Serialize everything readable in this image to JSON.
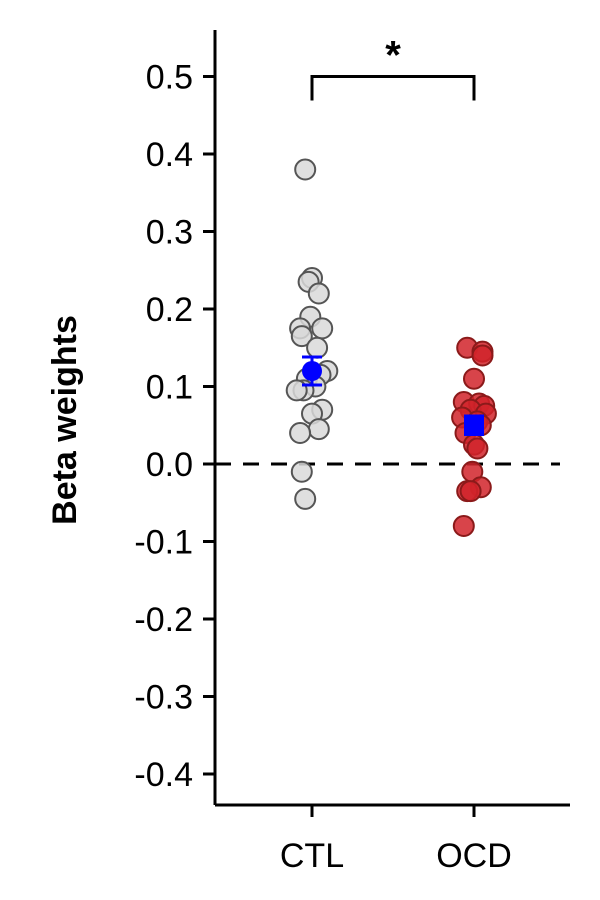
{
  "chart_data": {
    "type": "scatter",
    "title": "",
    "xlabel": "",
    "ylabel": "Beta weights",
    "ylim": [
      -0.44,
      0.56
    ],
    "yticks": [
      -0.4,
      -0.3,
      -0.2,
      -0.1,
      0.0,
      0.1,
      0.2,
      0.3,
      0.4,
      0.5
    ],
    "ytick_labels": [
      "-0.4",
      "-0.3",
      "-0.2",
      "-0.1",
      "0.0",
      "0.1",
      "0.2",
      "0.3",
      "0.4",
      "0.5"
    ],
    "categories": [
      "CTL",
      "OCD"
    ],
    "reference_line": {
      "y": 0.0,
      "style": "dashed"
    },
    "grid": false,
    "legend": "none",
    "series": [
      {
        "category": "CTL",
        "point_color": "#d9d9d9",
        "point_edge": "#555555",
        "values": [
          0.38,
          0.24,
          0.235,
          0.22,
          0.19,
          0.175,
          0.175,
          0.165,
          0.15,
          0.12,
          0.115,
          0.11,
          0.1,
          0.095,
          0.095,
          0.07,
          0.065,
          0.045,
          0.04,
          -0.01,
          -0.045
        ],
        "offsets": [
          -0.2,
          0.0,
          -0.1,
          0.2,
          -0.05,
          0.3,
          -0.35,
          -0.3,
          0.15,
          0.45,
          0.25,
          -0.15,
          0.1,
          -0.25,
          -0.45,
          0.3,
          0.0,
          0.2,
          -0.35,
          -0.3,
          -0.2
        ],
        "mean": 0.12,
        "sem": 0.018
      },
      {
        "category": "OCD",
        "point_color": "#d1232a",
        "point_edge": "#8b1a1a",
        "values": [
          0.15,
          0.145,
          0.14,
          0.11,
          0.08,
          0.078,
          0.075,
          0.07,
          0.065,
          0.06,
          0.055,
          0.05,
          0.04,
          0.025,
          0.02,
          -0.01,
          -0.03,
          -0.035,
          -0.035,
          -0.08
        ],
        "offsets": [
          -0.2,
          0.25,
          0.25,
          0.0,
          -0.3,
          0.15,
          0.3,
          -0.1,
          0.35,
          -0.35,
          0.1,
          0.2,
          -0.25,
          0.0,
          0.1,
          -0.05,
          0.2,
          -0.2,
          -0.1,
          -0.3
        ],
        "mean": 0.05,
        "sem": 0.012
      }
    ],
    "mean_marker_color": "#0000ff",
    "significance": {
      "between": [
        "CTL",
        "OCD"
      ],
      "label": "*",
      "y": 0.5
    }
  }
}
